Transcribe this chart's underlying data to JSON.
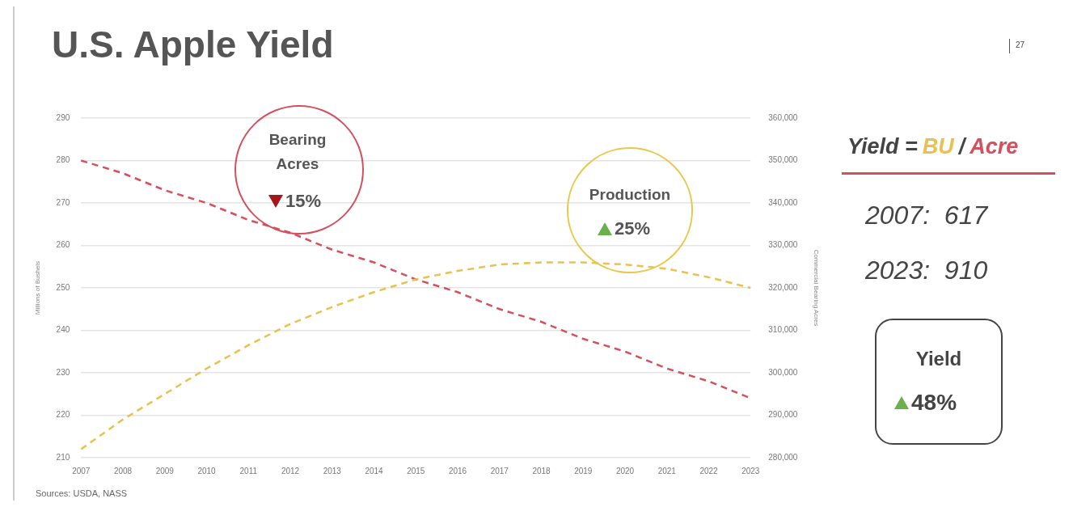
{
  "chart_data": {
    "type": "line",
    "title": "U.S. Apple Yield",
    "ylabel": "Millions of Bushels",
    "y2label": "Commercial Bearing Acres",
    "categories": [
      "2007",
      "2008",
      "2009",
      "2010",
      "2011",
      "2012",
      "2013",
      "2014",
      "2015",
      "2016",
      "2017",
      "2018",
      "2019",
      "2020",
      "2021",
      "2022",
      "2023"
    ],
    "series": [
      {
        "color": "#e8c14f",
        "axis": "y",
        "line_style": "dashed",
        "values": [
          212,
          219,
          225,
          231,
          236.5,
          241.5,
          245.5,
          249,
          252,
          254,
          255.5,
          256,
          256,
          255.5,
          254.5,
          252.5,
          250
        ]
      },
      {
        "color": "#d4505e",
        "axis": "y2",
        "line_style": "dashed",
        "values": [
          350000,
          347000,
          343000,
          340000,
          336000,
          333000,
          329000,
          326000,
          322000,
          319000,
          315000,
          312000,
          308000,
          305000,
          301000,
          298000,
          294000
        ]
      }
    ],
    "ylim": [
      210,
      290
    ],
    "yticks": [
      210,
      220,
      230,
      240,
      250,
      260,
      270,
      280,
      290
    ],
    "y2lim": [
      280000,
      360000
    ],
    "y2ticks": [
      {
        "value": 280000,
        "label": "280,000"
      },
      {
        "value": 290000,
        "label": "290,000"
      },
      {
        "value": 300000,
        "label": "300,000"
      },
      {
        "value": 310000,
        "label": "310,000"
      },
      {
        "value": 320000,
        "label": "320,000"
      },
      {
        "value": 330000,
        "label": "330,000"
      },
      {
        "value": 340000,
        "label": "340,000"
      },
      {
        "value": 350000,
        "label": "350,000"
      },
      {
        "value": 360000,
        "label": "360,000"
      }
    ],
    "grid": "y",
    "legend": false,
    "marker": "none",
    "annotations": [
      "27",
      "Bearing Acres",
      "15%",
      "Production",
      "25%",
      "Yield =",
      "BU",
      "/",
      "Acre",
      "2007:  617",
      "2023:  910",
      "Yield",
      "48%",
      "Sources: USDA, NASS"
    ]
  }
}
